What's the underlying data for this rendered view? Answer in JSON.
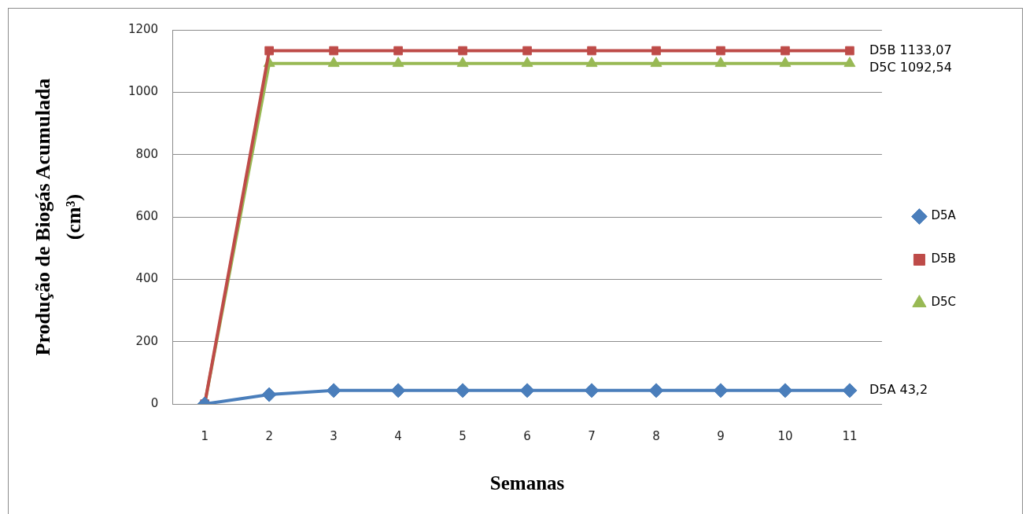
{
  "chart_data": {
    "type": "line",
    "xlabel": "Semanas",
    "ylabel": "Produção de Biogás Acumulada\n(cm³)",
    "categories": [
      "1",
      "2",
      "3",
      "4",
      "5",
      "6",
      "7",
      "8",
      "9",
      "10",
      "11"
    ],
    "series": [
      {
        "name": "D5A",
        "color": "#4a7ebb",
        "marker": "diamond",
        "values": [
          0,
          30,
          43.2,
          43.2,
          43.2,
          43.2,
          43.2,
          43.2,
          43.2,
          43.2,
          43.2
        ]
      },
      {
        "name": "D5B",
        "color": "#be4b48",
        "marker": "square",
        "values": [
          0,
          1133.07,
          1133.07,
          1133.07,
          1133.07,
          1133.07,
          1133.07,
          1133.07,
          1133.07,
          1133.07,
          1133.07
        ]
      },
      {
        "name": "D5C",
        "color": "#98b954",
        "marker": "triangle",
        "values": [
          0,
          1092.54,
          1092.54,
          1092.54,
          1092.54,
          1092.54,
          1092.54,
          1092.54,
          1092.54,
          1092.54,
          1092.54
        ]
      }
    ],
    "ylim": [
      0,
      1200
    ],
    "yticks": [
      0,
      200,
      400,
      600,
      800,
      1000,
      1200
    ],
    "grid": "y",
    "legend": "right",
    "annotations": [
      {
        "text": "D5B 1133,07",
        "x": "11",
        "y": 1133.07
      },
      {
        "text": "D5C 1092,54",
        "x": "11",
        "y": 1092.54
      },
      {
        "text": "D5A 43,2",
        "x": "11",
        "y": 43.2
      }
    ]
  }
}
